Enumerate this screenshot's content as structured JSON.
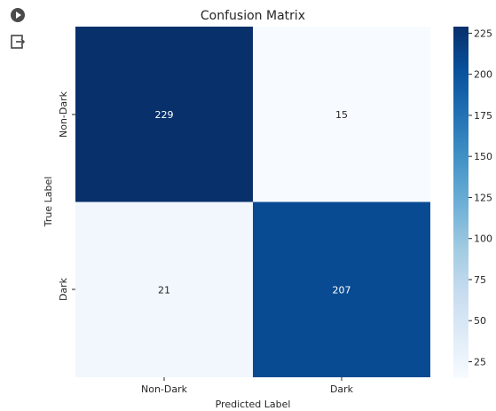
{
  "gutter": {
    "run_icon": "play-circle-icon",
    "output_icon": "output-exit-icon"
  },
  "chart_data": {
    "type": "heatmap",
    "title": "Confusion Matrix",
    "xlabel": "Predicted Label",
    "ylabel": "True Label",
    "x_categories": [
      "Non-Dark",
      "Dark"
    ],
    "y_categories": [
      "Non-Dark",
      "Dark"
    ],
    "values": [
      [
        229,
        15
      ],
      [
        21,
        207
      ]
    ],
    "colormap": "Blues",
    "colorbar": {
      "min": 15,
      "max": 229,
      "ticks": [
        "25",
        "50",
        "75",
        "100",
        "125",
        "150",
        "175",
        "200",
        "225"
      ]
    },
    "colors": {
      "high": "#08306b",
      "low": "#f7fbff",
      "text_dark_bg": "#ffffff",
      "text_light_bg": "#262626"
    }
  }
}
